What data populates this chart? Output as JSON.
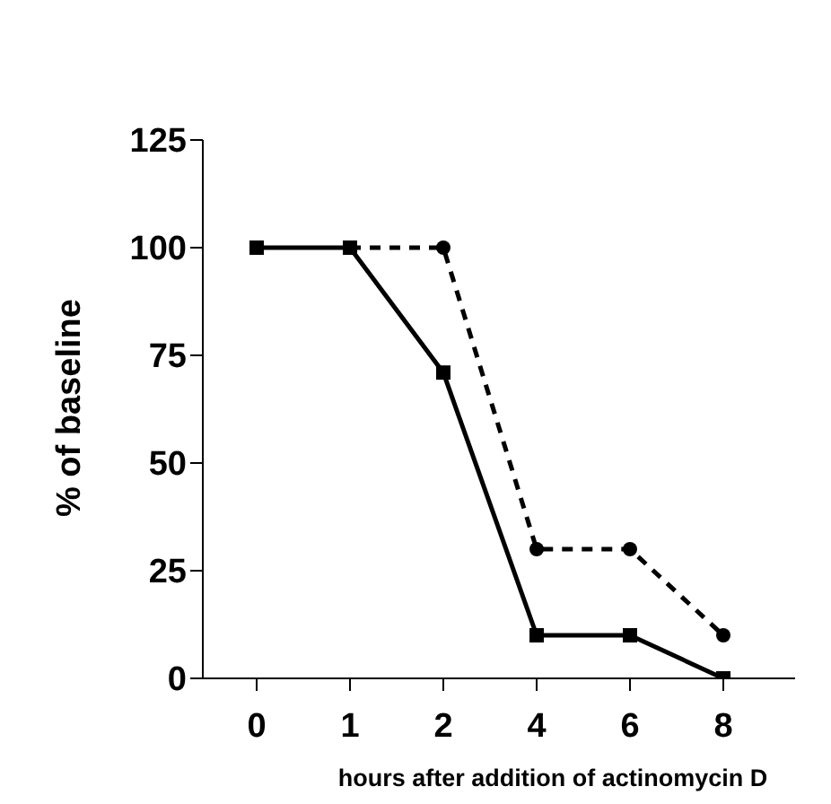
{
  "chart_data": {
    "type": "line",
    "xlabel": "hours after addition of actinomycin D",
    "ylabel": "% of baseline",
    "categories": [
      "0",
      "1",
      "2",
      "4",
      "6",
      "8"
    ],
    "series": [
      {
        "color": "#000000",
        "values": [
          100,
          100,
          71,
          10,
          10,
          0
        ],
        "marker": "square",
        "line_style": "solid"
      },
      {
        "color": "#000000",
        "values": [
          null,
          100,
          100,
          30,
          30,
          10
        ],
        "marker": "circle",
        "line_style": "dashed"
      }
    ],
    "ylim": [
      0,
      125
    ],
    "yticks": [
      0,
      25,
      50,
      75,
      100,
      125
    ],
    "grid": false,
    "legend": false
  }
}
